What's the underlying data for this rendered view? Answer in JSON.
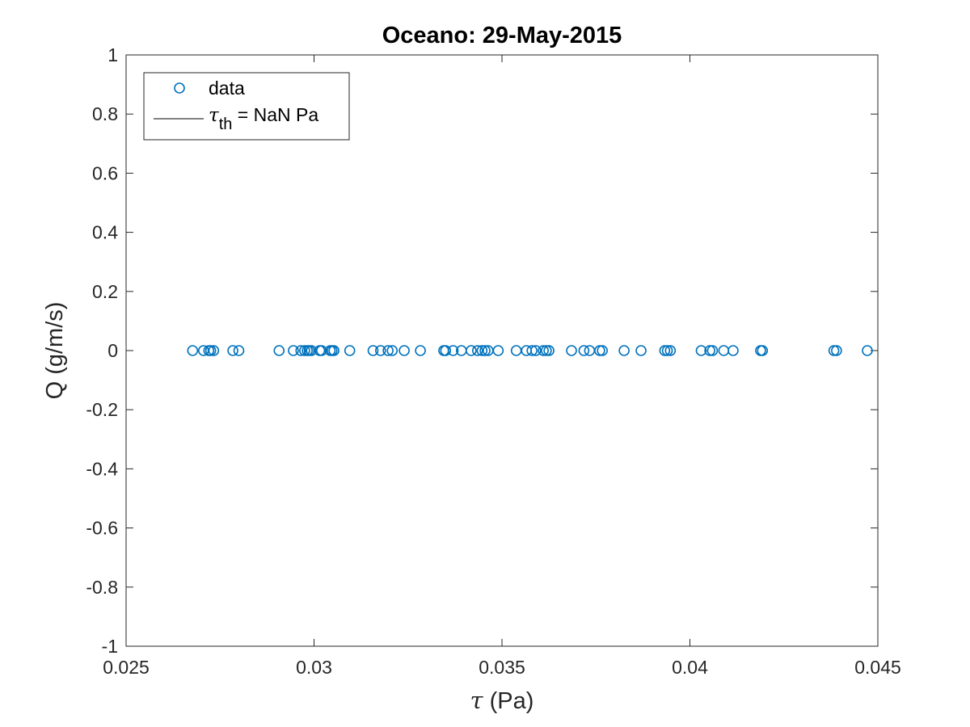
{
  "chart_data": {
    "type": "scatter",
    "title": "Oceano: 29-May-2015",
    "xlabel_symbol": "τ",
    "xlabel_rest": " (Pa)",
    "ylabel": "Q (g/m/s)",
    "xlim": [
      0.025,
      0.045
    ],
    "ylim": [
      -1,
      1
    ],
    "xticks": [
      0.025,
      0.03,
      0.035,
      0.04,
      0.045
    ],
    "xtick_labels": [
      "0.025",
      "0.03",
      "0.035",
      "0.04",
      "0.045"
    ],
    "yticks": [
      1,
      0.8,
      0.6,
      0.4,
      0.2,
      0,
      -0.2,
      -0.4,
      -0.6,
      -0.8,
      -1
    ],
    "ytick_labels": [
      "1",
      "0.8",
      "0.6",
      "0.4",
      "0.2",
      "0",
      "-0.2",
      "-0.4",
      "-0.6",
      "-0.8",
      "-1"
    ],
    "grid": false,
    "legend_position": "top-left",
    "legend": {
      "data_label": "data",
      "fit_symbol": "τ",
      "fit_subscript": "th",
      "fit_rest": " = NaN Pa"
    },
    "series": [
      {
        "name": "data",
        "marker": "circle",
        "color": "#0072BD",
        "x": [
          0.02677,
          0.02706,
          0.0272,
          0.02725,
          0.02733,
          0.02784,
          0.028,
          0.02907,
          0.02945,
          0.02965,
          0.02975,
          0.02982,
          0.02987,
          0.02993,
          0.03015,
          0.0302,
          0.03043,
          0.03048,
          0.03053,
          0.03095,
          0.03157,
          0.03177,
          0.03197,
          0.03208,
          0.0324,
          0.03283,
          0.03345,
          0.0335,
          0.0337,
          0.03392,
          0.03418,
          0.03435,
          0.03447,
          0.03455,
          0.03463,
          0.0349,
          0.03538,
          0.03565,
          0.0358,
          0.0359,
          0.0361,
          0.03618,
          0.03625,
          0.03685,
          0.03718,
          0.03733,
          0.0376,
          0.03767,
          0.03825,
          0.0387,
          0.03933,
          0.0394,
          0.03948,
          0.0403,
          0.04053,
          0.0406,
          0.0409,
          0.04115,
          0.04188,
          0.04193,
          0.04383,
          0.0439,
          0.04472
        ],
        "y": [
          0,
          0,
          0,
          0,
          0,
          0,
          0,
          0,
          0,
          0,
          0,
          0,
          0,
          0,
          0,
          0,
          0,
          0,
          0,
          0,
          0,
          0,
          0,
          0,
          0,
          0,
          0,
          0,
          0,
          0,
          0,
          0,
          0,
          0,
          0,
          0,
          0,
          0,
          0,
          0,
          0,
          0,
          0,
          0,
          0,
          0,
          0,
          0,
          0,
          0,
          0,
          0,
          0,
          0,
          0,
          0,
          0,
          0,
          0,
          0,
          0,
          0,
          0
        ]
      },
      {
        "name_symbol": "τ",
        "name_subscript": "th",
        "name_rest": " = NaN Pa",
        "style": "line",
        "color": "#000000",
        "x": [],
        "y": []
      }
    ]
  }
}
